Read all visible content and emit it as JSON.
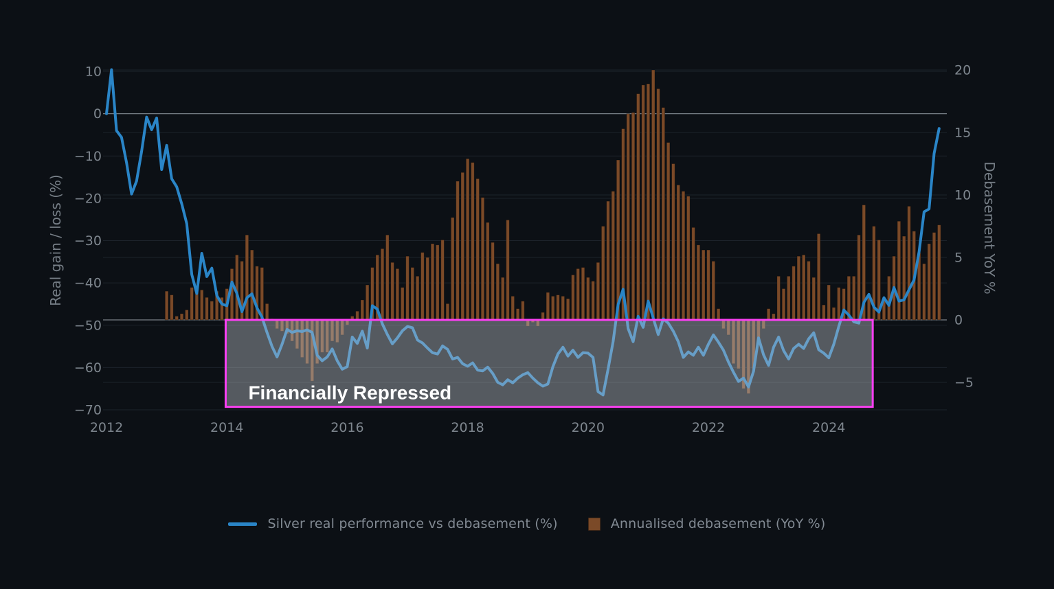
{
  "chart_data": {
    "type": "line+bar",
    "title": "",
    "x_axis": {
      "ticks": [
        2012,
        2014,
        2016,
        2018,
        2020,
        2022,
        2024
      ],
      "grid": false
    },
    "left_axis": {
      "title": "Real gain / loss (%)",
      "ticks": [
        10,
        0,
        -10,
        -20,
        -30,
        -40,
        -50,
        -60,
        -70
      ],
      "range": [
        -72,
        11
      ],
      "grid": true
    },
    "right_axis": {
      "title": "Debasement YoY %",
      "ticks": [
        20,
        15,
        10,
        5,
        0,
        -5
      ],
      "range": [
        -6.5,
        20.2
      ],
      "grid": true
    },
    "legend_position": "bottom-center",
    "series": [
      {
        "name": "Silver real performance vs debasement (%)",
        "type": "line",
        "axis": "left",
        "color": "#2a85c7",
        "start_year": 2012,
        "start_month": 1,
        "values": [
          0,
          10.4,
          -4.0,
          -5.6,
          -11.6,
          -19.0,
          -15.9,
          -8.9,
          -0.8,
          -3.8,
          -1.0,
          -13.2,
          -7.5,
          -15.4,
          -17.3,
          -21.3,
          -26.0,
          -38.0,
          -42.5,
          -33.0,
          -38.5,
          -36.5,
          -43.0,
          -45.0,
          -45.4,
          -39.8,
          -42.5,
          -46.8,
          -43.5,
          -42.6,
          -45.9,
          -48.1,
          -51.7,
          -55.0,
          -57.5,
          -54.5,
          -51.0,
          -51.7,
          -51.3,
          -51.5,
          -51.1,
          -51.7,
          -57.1,
          -58.4,
          -57.5,
          -55.6,
          -58.4,
          -60.4,
          -59.8,
          -52.8,
          -54.3,
          -51.4,
          -55.4,
          -45.4,
          -46.2,
          -49.7,
          -52.2,
          -54.4,
          -53.0,
          -51.3,
          -50.3,
          -50.6,
          -53.5,
          -54.2,
          -55.4,
          -56.5,
          -56.8,
          -54.9,
          -55.7,
          -58.0,
          -57.6,
          -59.1,
          -59.7,
          -58.9,
          -60.6,
          -60.8,
          -59.9,
          -61.4,
          -63.5,
          -64.1,
          -62.9,
          -63.6,
          -62.5,
          -61.7,
          -61.2,
          -62.5,
          -63.6,
          -64.4,
          -63.9,
          -59.8,
          -56.8,
          -55.2,
          -57.3,
          -55.9,
          -57.6,
          -56.5,
          -56.6,
          -57.6,
          -65.7,
          -66.5,
          -60.4,
          -53.9,
          -45.1,
          -41.5,
          -50.8,
          -53.9,
          -47.9,
          -50.5,
          -44.3,
          -48.3,
          -52.2,
          -48.5,
          -49.5,
          -51.4,
          -53.9,
          -57.6,
          -56.3,
          -57.1,
          -55.2,
          -57.1,
          -54.5,
          -52.3,
          -54.0,
          -55.9,
          -58.7,
          -61.1,
          -63.3,
          -62.5,
          -64.6,
          -60.9,
          -53.0,
          -57.0,
          -59.5,
          -55.2,
          -52.8,
          -56.0,
          -58.0,
          -55.5,
          -54.5,
          -55.5,
          -53.2,
          -51.8,
          -55.8,
          -56.6,
          -57.7,
          -54.5,
          -50.3,
          -46.4,
          -47.6,
          -49.2,
          -49.5,
          -44.6,
          -42.7,
          -45.7,
          -46.9,
          -43.5,
          -45.3,
          -41.1,
          -44.3,
          -44.0,
          -41.6,
          -39.3,
          -32.7,
          -23.2,
          -22.5,
          -9.4,
          -3.5
        ]
      },
      {
        "name": "Annualised debasement (YoY %)",
        "type": "bar",
        "axis": "right",
        "color": "#7b4a28",
        "start_year": 2013,
        "start_month": 1,
        "values": [
          2.3,
          2.0,
          0.3,
          0.5,
          0.8,
          2.6,
          2.3,
          2.4,
          1.8,
          1.5,
          2.3,
          1.8,
          2.5,
          4.1,
          5.2,
          4.7,
          6.8,
          5.6,
          4.3,
          4.2,
          1.3,
          0.1,
          -0.7,
          -0.9,
          -1.1,
          -1.7,
          -2.3,
          -3.0,
          -3.5,
          -4.9,
          -3.5,
          -2.6,
          -2.6,
          -1.7,
          -1.8,
          -1.2,
          -0.4,
          0.3,
          0.7,
          1.6,
          2.8,
          4.2,
          5.2,
          5.7,
          6.8,
          4.6,
          4.1,
          2.6,
          5.1,
          4.2,
          3.5,
          5.4,
          5.0,
          6.1,
          6.0,
          6.4,
          1.3,
          8.2,
          11.1,
          11.8,
          12.9,
          12.6,
          11.3,
          9.8,
          7.8,
          6.2,
          4.5,
          3.4,
          8.0,
          1.9,
          0.9,
          1.5,
          -0.5,
          -0.2,
          -0.5,
          0.6,
          2.2,
          1.9,
          2.0,
          1.9,
          1.7,
          3.6,
          4.1,
          4.2,
          3.4,
          3.1,
          4.6,
          7.5,
          9.5,
          10.3,
          12.8,
          15.3,
          16.5,
          16.6,
          18.1,
          18.8,
          18.9,
          20.0,
          18.5,
          17.0,
          14.2,
          12.5,
          10.8,
          10.3,
          9.9,
          7.4,
          6.0,
          5.6,
          5.6,
          4.7,
          0.9,
          -0.7,
          -1.2,
          -3.5,
          -3.9,
          -5.5,
          -5.9,
          -3.9,
          -2.0,
          -0.7,
          0.9,
          0.5,
          3.5,
          2.5,
          3.5,
          4.3,
          5.1,
          5.2,
          4.7,
          3.4,
          6.9,
          1.2,
          2.8,
          1.0,
          2.6,
          2.5,
          3.5,
          3.5,
          6.8,
          9.2,
          1.9,
          7.5,
          6.4,
          1.7,
          3.5,
          5.1,
          7.9,
          6.7,
          9.1,
          7.1,
          5.4,
          4.5,
          6.1,
          7.0,
          7.6
        ]
      }
    ],
    "annotation": {
      "label": "Financially Repressed",
      "x0_year": 2013.98,
      "x1_year": 2024.73,
      "top_value_right_axis": 0,
      "bottom_value_left_axis": -69.3,
      "border_color": "#fb3ff3",
      "fill_color": "rgba(188,193,199,0.42)",
      "text_color": "#ffffff"
    },
    "colors": {
      "background": "#0c1015",
      "grid": "#1d232b",
      "zero_line": "#98a0a8",
      "tick_text": "#7e868e",
      "axis_title_text": "#757d85"
    }
  },
  "legend": {
    "items": [
      {
        "label": "Silver real performance vs debasement (%)",
        "marker": "line",
        "color": "#2a85c7"
      },
      {
        "label": "Annualised debasement (YoY %)",
        "marker": "square",
        "color": "#7b4a28"
      }
    ]
  }
}
